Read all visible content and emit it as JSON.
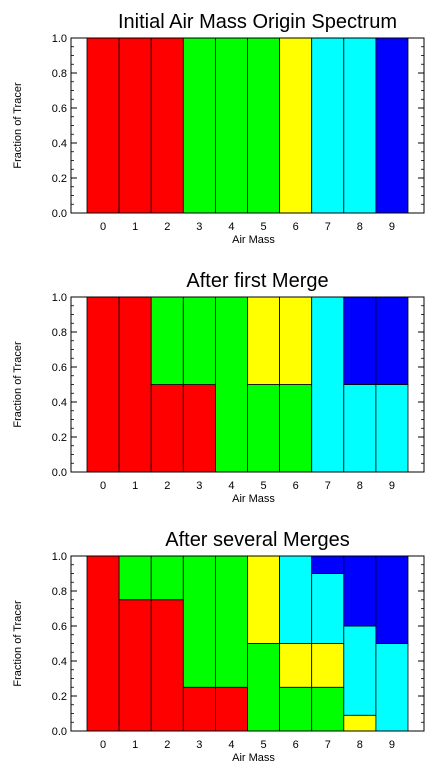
{
  "colors": {
    "red": "#ff0000",
    "green": "#00ff00",
    "yellow": "#ffff00",
    "cyan": "#00ffff",
    "blue": "#0000ff",
    "axis": "#000000"
  },
  "chart_data": [
    {
      "type": "bar",
      "stacked": true,
      "title": "Initial Air Mass Origin Spectrum",
      "xlabel": "Air Mass",
      "ylabel": "Fraction of Tracer",
      "ylim": [
        0,
        1.0
      ],
      "yticks": [
        "0.0",
        "0.2",
        "0.4",
        "0.6",
        "0.8",
        "1.0"
      ],
      "categories": [
        "0",
        "1",
        "2",
        "3",
        "4",
        "5",
        "6",
        "7",
        "8",
        "9"
      ],
      "bars": [
        [
          {
            "color": "red",
            "from": 0,
            "to": 1.0
          }
        ],
        [
          {
            "color": "red",
            "from": 0,
            "to": 1.0
          }
        ],
        [
          {
            "color": "red",
            "from": 0,
            "to": 1.0
          }
        ],
        [
          {
            "color": "green",
            "from": 0,
            "to": 1.0
          }
        ],
        [
          {
            "color": "green",
            "from": 0,
            "to": 1.0
          }
        ],
        [
          {
            "color": "green",
            "from": 0,
            "to": 1.0
          }
        ],
        [
          {
            "color": "yellow",
            "from": 0,
            "to": 1.0
          }
        ],
        [
          {
            "color": "cyan",
            "from": 0,
            "to": 1.0
          }
        ],
        [
          {
            "color": "cyan",
            "from": 0,
            "to": 1.0
          }
        ],
        [
          {
            "color": "blue",
            "from": 0,
            "to": 1.0
          }
        ]
      ]
    },
    {
      "type": "bar",
      "stacked": true,
      "title": "After first Merge",
      "xlabel": "Air Mass",
      "ylabel": "Fraction of Tracer",
      "ylim": [
        0,
        1.0
      ],
      "yticks": [
        "0.0",
        "0.2",
        "0.4",
        "0.6",
        "0.8",
        "1.0"
      ],
      "categories": [
        "0",
        "1",
        "2",
        "3",
        "4",
        "5",
        "6",
        "7",
        "8",
        "9"
      ],
      "bars": [
        [
          {
            "color": "red",
            "from": 0,
            "to": 1.0
          }
        ],
        [
          {
            "color": "red",
            "from": 0,
            "to": 1.0
          }
        ],
        [
          {
            "color": "red",
            "from": 0,
            "to": 0.5
          },
          {
            "color": "green",
            "from": 0.5,
            "to": 1.0
          }
        ],
        [
          {
            "color": "red",
            "from": 0,
            "to": 0.5
          },
          {
            "color": "green",
            "from": 0.5,
            "to": 1.0
          }
        ],
        [
          {
            "color": "green",
            "from": 0,
            "to": 1.0
          }
        ],
        [
          {
            "color": "green",
            "from": 0,
            "to": 0.5
          },
          {
            "color": "yellow",
            "from": 0.5,
            "to": 1.0
          }
        ],
        [
          {
            "color": "green",
            "from": 0,
            "to": 0.5
          },
          {
            "color": "yellow",
            "from": 0.5,
            "to": 1.0
          }
        ],
        [
          {
            "color": "cyan",
            "from": 0,
            "to": 1.0
          }
        ],
        [
          {
            "color": "cyan",
            "from": 0,
            "to": 0.5
          },
          {
            "color": "blue",
            "from": 0.5,
            "to": 1.0
          }
        ],
        [
          {
            "color": "cyan",
            "from": 0,
            "to": 0.5
          },
          {
            "color": "blue",
            "from": 0.5,
            "to": 1.0
          }
        ]
      ]
    },
    {
      "type": "bar",
      "stacked": true,
      "title": "After several Merges",
      "xlabel": "Air Mass",
      "ylabel": "Fraction of Tracer",
      "ylim": [
        0,
        1.0
      ],
      "yticks": [
        "0.0",
        "0.2",
        "0.4",
        "0.6",
        "0.8",
        "1.0"
      ],
      "categories": [
        "0",
        "1",
        "2",
        "3",
        "4",
        "5",
        "6",
        "7",
        "8",
        "9"
      ],
      "bars": [
        [
          {
            "color": "red",
            "from": 0,
            "to": 1.0
          }
        ],
        [
          {
            "color": "red",
            "from": 0,
            "to": 0.75
          },
          {
            "color": "green",
            "from": 0.75,
            "to": 1.0
          }
        ],
        [
          {
            "color": "red",
            "from": 0,
            "to": 0.75
          },
          {
            "color": "green",
            "from": 0.75,
            "to": 1.0
          }
        ],
        [
          {
            "color": "red",
            "from": 0,
            "to": 0.25
          },
          {
            "color": "green",
            "from": 0.25,
            "to": 1.0
          }
        ],
        [
          {
            "color": "red",
            "from": 0,
            "to": 0.25
          },
          {
            "color": "green",
            "from": 0.25,
            "to": 1.0
          }
        ],
        [
          {
            "color": "green",
            "from": 0,
            "to": 0.5
          },
          {
            "color": "yellow",
            "from": 0.5,
            "to": 1.0
          }
        ],
        [
          {
            "color": "green",
            "from": 0,
            "to": 0.25
          },
          {
            "color": "yellow",
            "from": 0.25,
            "to": 0.5
          },
          {
            "color": "cyan",
            "from": 0.5,
            "to": 1.0
          }
        ],
        [
          {
            "color": "green",
            "from": 0,
            "to": 0.25
          },
          {
            "color": "yellow",
            "from": 0.25,
            "to": 0.5
          },
          {
            "color": "cyan",
            "from": 0.5,
            "to": 0.9
          },
          {
            "color": "blue",
            "from": 0.9,
            "to": 1.0
          }
        ],
        [
          {
            "color": "yellow",
            "from": 0,
            "to": 0.09
          },
          {
            "color": "cyan",
            "from": 0.09,
            "to": 0.6
          },
          {
            "color": "blue",
            "from": 0.6,
            "to": 1.0
          }
        ],
        [
          {
            "color": "cyan",
            "from": 0,
            "to": 0.5
          },
          {
            "color": "blue",
            "from": 0.5,
            "to": 1.0
          }
        ]
      ]
    }
  ]
}
